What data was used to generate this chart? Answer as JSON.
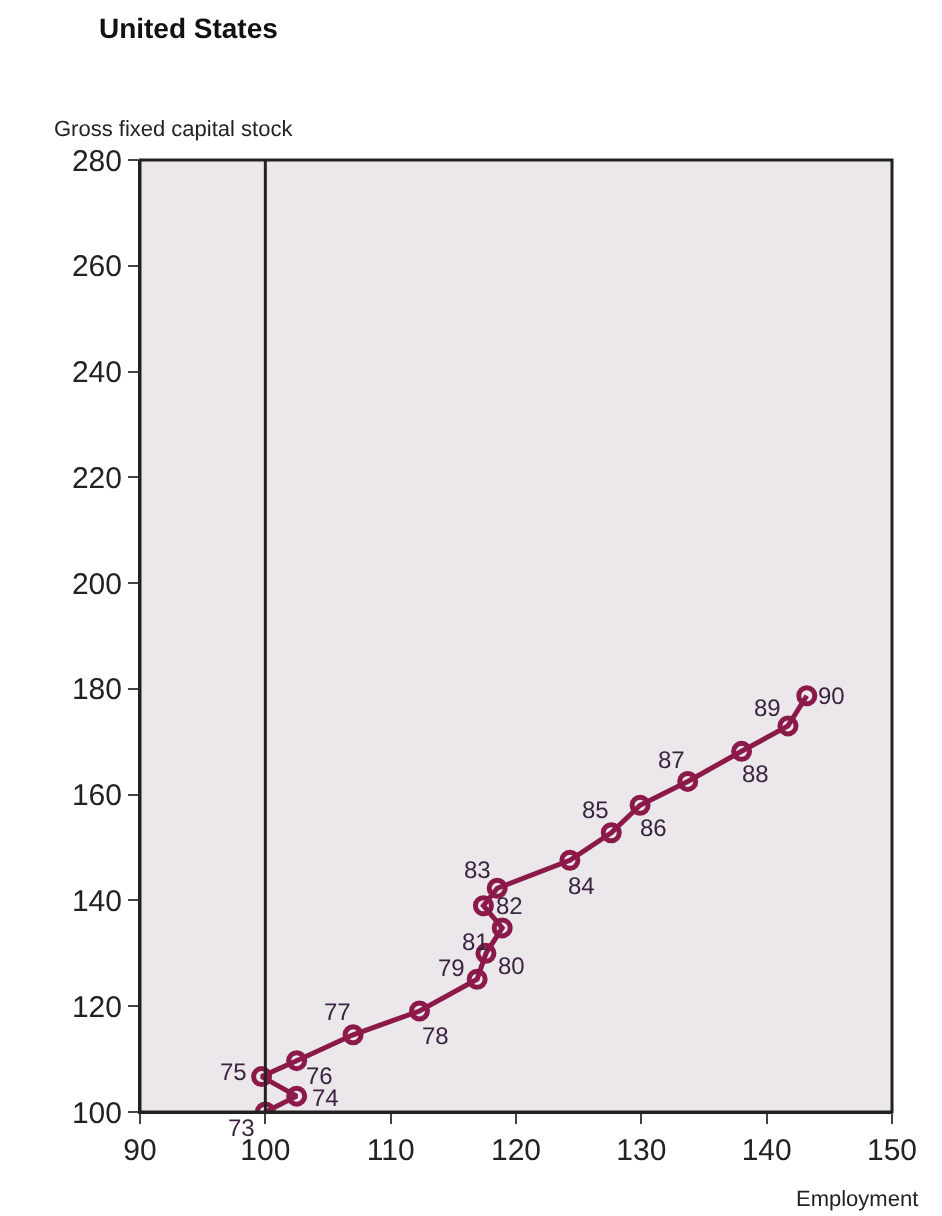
{
  "chart_data": {
    "type": "line",
    "title": "United States",
    "ylabel": "Gross fixed capital stock",
    "xlabel": "Employment",
    "x": [
      100,
      102.5,
      99.7,
      102.5,
      107,
      112.3,
      116.9,
      117.6,
      118.9,
      117.4,
      118.5,
      124.3,
      127.6,
      129.9,
      133.7,
      138,
      141.7,
      143.2
    ],
    "series": [
      {
        "color": "#8b1a4a",
        "values": [
          100,
          103,
          106.7,
          109.7,
          114.6,
          119.1,
          125.1,
          130,
          134.8,
          139,
          142.3,
          147.6,
          152.8,
          158,
          162.5,
          168.2,
          173,
          178.7
        ]
      }
    ],
    "marker": "circle",
    "line_style": "solid",
    "xlim": [
      90,
      150
    ],
    "xticks": [
      90,
      100,
      110,
      120,
      130,
      140,
      150
    ],
    "ylim": [
      100,
      280
    ],
    "yticks": [
      100,
      120,
      140,
      160,
      180,
      200,
      220,
      240,
      260,
      280
    ],
    "grid": false,
    "ref_lines": [
      {
        "axis": "x",
        "value": 100,
        "label": null
      }
    ],
    "annotations": [
      {
        "text": "73",
        "x": 100,
        "y": 100
      },
      {
        "text": "74",
        "x": 102.5,
        "y": 103
      },
      {
        "text": "75",
        "x": 99.7,
        "y": 106.7
      },
      {
        "text": "76",
        "x": 102.5,
        "y": 109.7
      },
      {
        "text": "77",
        "x": 107,
        "y": 114.6
      },
      {
        "text": "78",
        "x": 112.3,
        "y": 119.1
      },
      {
        "text": "79",
        "x": 116.9,
        "y": 125.1
      },
      {
        "text": "80",
        "x": 117.6,
        "y": 130
      },
      {
        "text": "81",
        "x": 118.9,
        "y": 134.8
      },
      {
        "text": "82",
        "x": 117.4,
        "y": 139
      },
      {
        "text": "83",
        "x": 118.5,
        "y": 142.3
      },
      {
        "text": "84",
        "x": 124.3,
        "y": 147.6
      },
      {
        "text": "85",
        "x": 127.6,
        "y": 152.8
      },
      {
        "text": "86",
        "x": 129.9,
        "y": 158
      },
      {
        "text": "87",
        "x": 133.7,
        "y": 162.5
      },
      {
        "text": "88",
        "x": 138,
        "y": 168.2
      },
      {
        "text": "89",
        "x": 141.7,
        "y": 173
      },
      {
        "text": "90",
        "x": 143.2,
        "y": 178.7
      }
    ]
  }
}
